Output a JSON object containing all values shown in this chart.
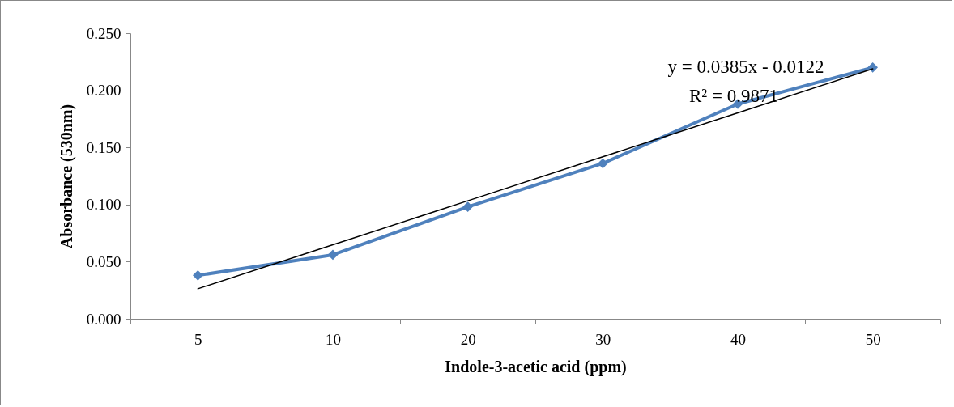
{
  "chart_data": {
    "type": "line",
    "xlabel": "Indole-3-acetic acid (ppm)",
    "ylabel": "Absorbance (530nm)",
    "categories": [
      "5",
      "10",
      "20",
      "30",
      "40",
      "50"
    ],
    "series": [
      {
        "color": "#4f81bd",
        "values": [
          0.038,
          0.056,
          0.098,
          0.136,
          0.188,
          0.22
        ]
      },
      {
        "type": "line",
        "marker": "none",
        "color": "#000000",
        "values": [
          0.0263,
          0.0648,
          0.1033,
          0.1418,
          0.1803,
          0.2188
        ]
      }
    ],
    "ylim": [
      0,
      0.25
    ],
    "yticks": [
      {
        "value": 0,
        "label": "0.000"
      },
      {
        "value": 0.05,
        "label": "0.050"
      },
      {
        "value": 0.1,
        "label": "0.100"
      },
      {
        "value": 0.15,
        "label": "0.150"
      },
      {
        "value": 0.2,
        "label": "0.200"
      },
      {
        "value": 0.25,
        "label": "0.250"
      }
    ],
    "marker": "diamond",
    "line_style": "solid",
    "annotations": [
      "y = 0.0385x - 0.0122",
      "R² = 0.9871"
    ]
  }
}
